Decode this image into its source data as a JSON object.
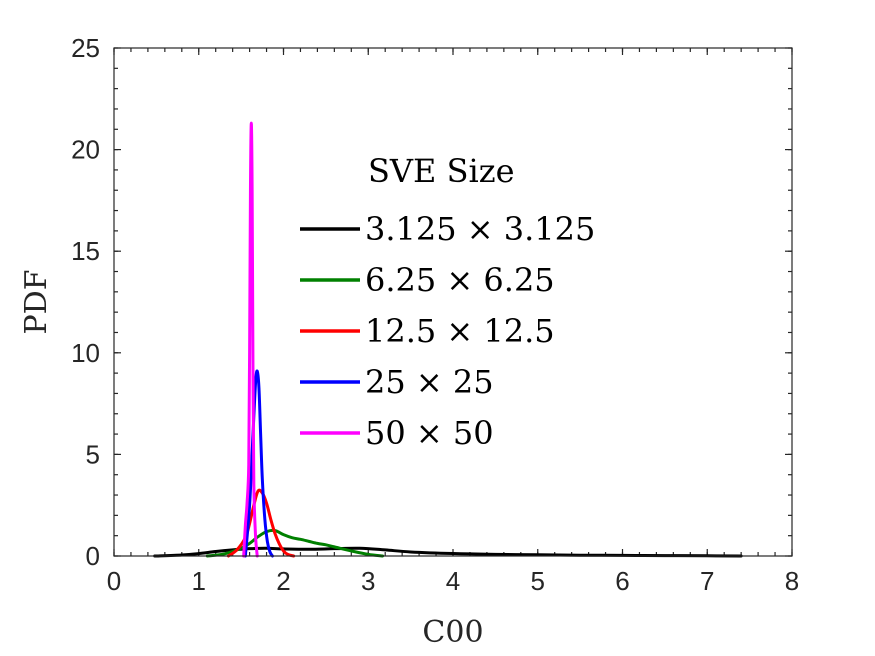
{
  "chart_data": {
    "type": "line",
    "xlabel": "C00",
    "ylabel": "PDF",
    "xlim": [
      0,
      8
    ],
    "ylim": [
      0,
      25
    ],
    "xticks": [
      "0",
      "1",
      "2",
      "3",
      "4",
      "5",
      "6",
      "7",
      "8"
    ],
    "yticks": [
      "0",
      "5",
      "10",
      "15",
      "20",
      "25"
    ],
    "grid": false,
    "legend": {
      "title": "SVE Size",
      "placement": "inside-top-center"
    },
    "series": [
      {
        "name": "3.125 × 3.125",
        "color": "#000000",
        "x": [
          0.48,
          0.8,
          1.0,
          1.2,
          1.4,
          1.6,
          1.8,
          2.0,
          2.3,
          2.6,
          2.9,
          3.2,
          3.5,
          4.0,
          4.5,
          5.0,
          5.5,
          6.0,
          6.5,
          7.0,
          7.4
        ],
        "y": [
          0.0,
          0.05,
          0.12,
          0.22,
          0.3,
          0.36,
          0.38,
          0.35,
          0.33,
          0.36,
          0.38,
          0.3,
          0.2,
          0.12,
          0.08,
          0.06,
          0.04,
          0.03,
          0.02,
          0.01,
          0.0
        ]
      },
      {
        "name": "6.25 × 6.25",
        "color": "#008000",
        "x": [
          1.1,
          1.3,
          1.5,
          1.6,
          1.7,
          1.8,
          1.9,
          2.0,
          2.1,
          2.2,
          2.3,
          2.4,
          2.5,
          2.6,
          2.8,
          3.0,
          3.17
        ],
        "y": [
          0.0,
          0.1,
          0.38,
          0.62,
          0.95,
          1.2,
          1.25,
          1.05,
          0.9,
          0.82,
          0.72,
          0.62,
          0.55,
          0.45,
          0.25,
          0.08,
          0.0
        ]
      },
      {
        "name": "12.5 × 12.5",
        "color": "#ff0000",
        "x": [
          1.35,
          1.45,
          1.55,
          1.6,
          1.65,
          1.7,
          1.75,
          1.8,
          1.85,
          1.9,
          1.95,
          2.0,
          2.05,
          2.12
        ],
        "y": [
          0.0,
          0.3,
          0.9,
          1.6,
          2.5,
          3.2,
          3.1,
          2.6,
          1.8,
          1.1,
          0.6,
          0.25,
          0.08,
          0.0
        ]
      },
      {
        "name": "25 × 25",
        "color": "#0000ff",
        "x": [
          1.55,
          1.6,
          1.64,
          1.67,
          1.69,
          1.71,
          1.73,
          1.75,
          1.78,
          1.81,
          1.84,
          1.87
        ],
        "y": [
          0.0,
          2.5,
          6.0,
          8.5,
          9.1,
          8.3,
          6.0,
          3.8,
          1.8,
          0.7,
          0.2,
          0.0
        ]
      },
      {
        "name": "50 × 50",
        "color": "#ff00ff",
        "x": [
          1.53,
          1.55,
          1.57,
          1.59,
          1.6,
          1.61,
          1.62,
          1.63,
          1.64,
          1.65,
          1.67,
          1.69
        ],
        "y": [
          0.0,
          1.5,
          2.6,
          4.5,
          10.0,
          18.0,
          21.3,
          18.0,
          9.0,
          3.5,
          1.0,
          0.0
        ]
      }
    ]
  }
}
